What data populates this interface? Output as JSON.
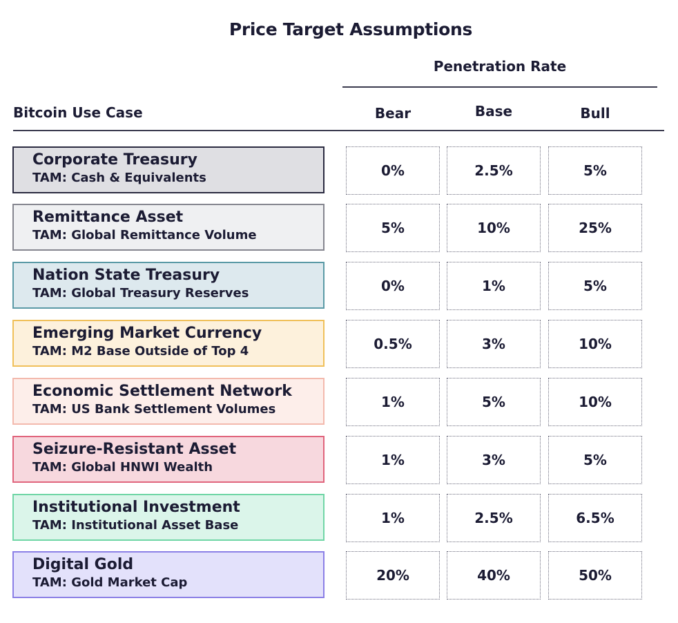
{
  "title": "Price Target Assumptions",
  "group_header": "Penetration Rate",
  "row_header": "Bitcoin Use Case",
  "columns": [
    "Bear",
    "Base",
    "Bull"
  ],
  "rows": [
    {
      "name": "Corporate Treasury",
      "tam": "TAM: Cash & Equivalents",
      "values": [
        "0%",
        "2.5%",
        "5%"
      ],
      "fill": "#dfdfe3",
      "border": "#2a2a40"
    },
    {
      "name": "Remittance Asset",
      "tam": "TAM: Global Remittance Volume",
      "values": [
        "5%",
        "10%",
        "25%"
      ],
      "fill": "#eff0f2",
      "border": "#85868f"
    },
    {
      "name": "Nation State Treasury",
      "tam": "TAM: Global Treasury Reserves",
      "values": [
        "0%",
        "1%",
        "5%"
      ],
      "fill": "#dde9ee",
      "border": "#5a9aa6"
    },
    {
      "name": "Emerging Market Currency",
      "tam": "TAM: M2 Base Outside of Top 4",
      "values": [
        "0.5%",
        "3%",
        "10%"
      ],
      "fill": "#fdf1dc",
      "border": "#f0c05a"
    },
    {
      "name": "Economic Settlement Network",
      "tam": "TAM: US Bank Settlement Volumes",
      "values": [
        "1%",
        "5%",
        "10%"
      ],
      "fill": "#fdeeea",
      "border": "#f3b9ad"
    },
    {
      "name": "Seizure-Resistant Asset",
      "tam": "TAM: Global HNWI Wealth",
      "values": [
        "1%",
        "3%",
        "5%"
      ],
      "fill": "#f7d8de",
      "border": "#e0647c"
    },
    {
      "name": "Institutional Investment",
      "tam": "TAM: Institutional Asset Base",
      "values": [
        "1%",
        "2.5%",
        "6.5%"
      ],
      "fill": "#dbf5ea",
      "border": "#70d6a6"
    },
    {
      "name": "Digital Gold",
      "tam": "TAM: Gold Market Cap",
      "values": [
        "20%",
        "40%",
        "50%"
      ],
      "fill": "#e3e1fb",
      "border": "#8b7fe6"
    }
  ],
  "chart_data": {
    "type": "table",
    "title": "Price Target Assumptions",
    "group_header": "Penetration Rate",
    "row_header": "Bitcoin Use Case",
    "columns": [
      "Bear",
      "Base",
      "Bull"
    ],
    "categories": [
      "Corporate Treasury",
      "Remittance Asset",
      "Nation State Treasury",
      "Emerging Market Currency",
      "Economic Settlement Network",
      "Seizure-Resistant Asset",
      "Institutional Investment",
      "Digital Gold"
    ],
    "series": [
      {
        "name": "Bear",
        "values": [
          0,
          5,
          0,
          0.5,
          1,
          1,
          1,
          20
        ]
      },
      {
        "name": "Base",
        "values": [
          2.5,
          10,
          1,
          3,
          5,
          3,
          2.5,
          40
        ]
      },
      {
        "name": "Bull",
        "values": [
          5,
          25,
          5,
          10,
          10,
          5,
          6.5,
          50
        ]
      }
    ]
  }
}
